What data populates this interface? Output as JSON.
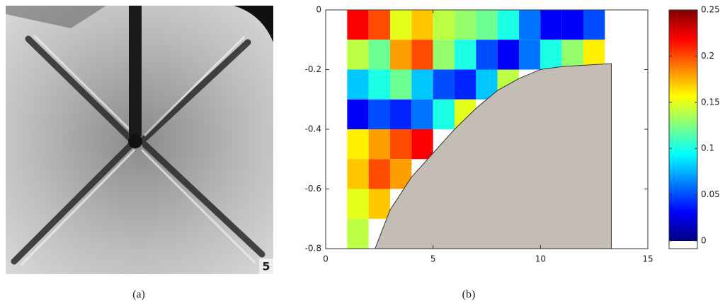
{
  "captions": [
    "(a)",
    "(b)"
  ],
  "photo_label": "5",
  "chart_data": {
    "type": "heatmap",
    "colormap": "jet",
    "x": [
      1.5,
      2.5,
      3.5,
      4.5,
      5.5,
      6.5,
      7.5,
      8.5,
      9.5,
      10.5,
      11.5,
      12.5
    ],
    "y": [
      -0.05,
      -0.15,
      -0.25,
      -0.35,
      -0.45,
      -0.55,
      -0.65,
      -0.75
    ],
    "values": [
      [
        0.22,
        0.2,
        0.15,
        0.17,
        0.14,
        0.13,
        0.12,
        0.1,
        0.06,
        0.03,
        0.03,
        0.05
      ],
      [
        0.14,
        0.12,
        0.18,
        0.2,
        0.13,
        0.1,
        0.05,
        0.03,
        0.06,
        0.1,
        0.13,
        0.16
      ],
      [
        0.08,
        0.1,
        0.12,
        0.08,
        0.05,
        0.04,
        0.08,
        0.14,
        null,
        null,
        null,
        null
      ],
      [
        0.03,
        0.05,
        0.04,
        0.06,
        0.1,
        0.15,
        null,
        null,
        null,
        null,
        null,
        null
      ],
      [
        0.16,
        0.18,
        0.2,
        0.22,
        null,
        null,
        null,
        null,
        null,
        null,
        null,
        null
      ],
      [
        0.17,
        0.2,
        0.18,
        null,
        null,
        null,
        null,
        null,
        null,
        null,
        null,
        null
      ],
      [
        0.15,
        0.17,
        null,
        null,
        null,
        null,
        null,
        null,
        null,
        null,
        null,
        null
      ],
      [
        0.14,
        null,
        null,
        null,
        null,
        null,
        null,
        null,
        null,
        null,
        null,
        null
      ]
    ],
    "bottom": {
      "color": "#c3bdb5",
      "x": [
        2.3,
        3,
        4,
        5,
        6,
        7,
        8,
        9,
        10,
        11,
        13.3
      ],
      "y": [
        -0.8,
        -0.67,
        -0.56,
        -0.48,
        -0.4,
        -0.33,
        -0.27,
        -0.23,
        -0.2,
        -0.19,
        -0.18
      ]
    },
    "xlim": [
      0,
      15
    ],
    "xticks": [
      0,
      5,
      10,
      15
    ],
    "ylim": [
      -0.8,
      0
    ],
    "yticks": [
      0,
      -0.2,
      -0.4,
      -0.6,
      -0.8
    ],
    "clim": [
      -0.0085,
      0.25
    ],
    "cticks": [
      0,
      0.05,
      0.1,
      0.15,
      0.2,
      0.25
    ]
  }
}
